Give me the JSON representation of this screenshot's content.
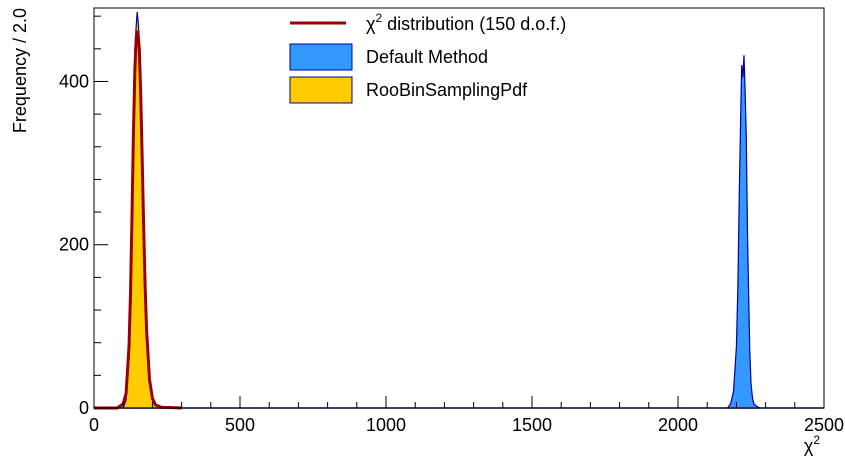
{
  "chart_data": {
    "type": "histogram",
    "title": "",
    "xlabel": "χ2",
    "xlabel_base": "χ",
    "xlabel_sup": "2",
    "ylabel": "Frequency / 2.0",
    "xlim": [
      0,
      2500
    ],
    "ylim": [
      0,
      490
    ],
    "x_ticks": [
      "0",
      "500",
      "1000",
      "1500",
      "2000",
      "2500"
    ],
    "y_ticks": [
      "0",
      "200",
      "400"
    ],
    "grid": false,
    "legend_position": "top-center",
    "legend": [
      {
        "label_base": "χ",
        "label_sup": "2",
        "label_rest": " distribution (150 d.o.f.)",
        "kind": "line",
        "color": "#990000"
      },
      {
        "label": "Default Method",
        "kind": "fill",
        "color": "#3399ff",
        "edge": "#000099"
      },
      {
        "label": "RooBinSamplingPdf",
        "kind": "fill",
        "color": "#ffcc00",
        "edge": "#000099"
      }
    ],
    "series": [
      {
        "name": "Default Method",
        "color": "#3399ff",
        "edge": "#000099",
        "x": [
          2170,
          2180,
          2190,
          2200,
          2205,
          2210,
          2215,
          2218,
          2222,
          2226,
          2230,
          2234,
          2238,
          2242,
          2246,
          2250,
          2255,
          2260,
          2270,
          2280
        ],
        "values": [
          0,
          5,
          20,
          75,
          150,
          265,
          365,
          420,
          405,
          432,
          385,
          330,
          215,
          135,
          70,
          30,
          12,
          5,
          2,
          0
        ]
      },
      {
        "name": "RooBinSamplingPdf",
        "color": "#ffcc00",
        "edge": "#000099",
        "x": [
          100,
          110,
          120,
          125,
          130,
          135,
          140,
          145,
          148,
          152,
          156,
          160,
          165,
          170,
          175,
          180,
          190,
          200,
          215,
          230
        ],
        "values": [
          0,
          10,
          60,
          130,
          240,
          360,
          440,
          470,
          485,
          470,
          440,
          380,
          300,
          210,
          140,
          85,
          35,
          12,
          3,
          0
        ]
      },
      {
        "name": "χ2 distribution (150 d.o.f.)",
        "color": "#990000",
        "x": [
          0,
          80,
          100,
          110,
          120,
          125,
          130,
          135,
          140,
          145,
          150,
          155,
          160,
          165,
          170,
          175,
          180,
          190,
          200,
          210,
          230,
          300
        ],
        "values": [
          0,
          0,
          5,
          18,
          75,
          140,
          235,
          335,
          415,
          455,
          462,
          440,
          385,
          305,
          225,
          150,
          95,
          35,
          12,
          4,
          1,
          0
        ]
      }
    ]
  }
}
